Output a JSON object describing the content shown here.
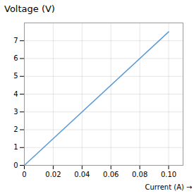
{
  "chart_data": {
    "type": "line",
    "title": "Voltage (V)",
    "xlabel": "Current (A)",
    "x": [
      0,
      0.1
    ],
    "values": [
      0,
      7.5
    ],
    "color": "#5B9BD5",
    "xlim": [
      0,
      0.11
    ],
    "ylim": [
      0,
      8
    ],
    "xticks": [
      0,
      0.02,
      0.04,
      0.06,
      0.08,
      {
        "value": 0.1,
        "label": "0.10"
      }
    ],
    "yticks": [
      0,
      1,
      2,
      3,
      4,
      5,
      6,
      7
    ],
    "grid": true
  }
}
